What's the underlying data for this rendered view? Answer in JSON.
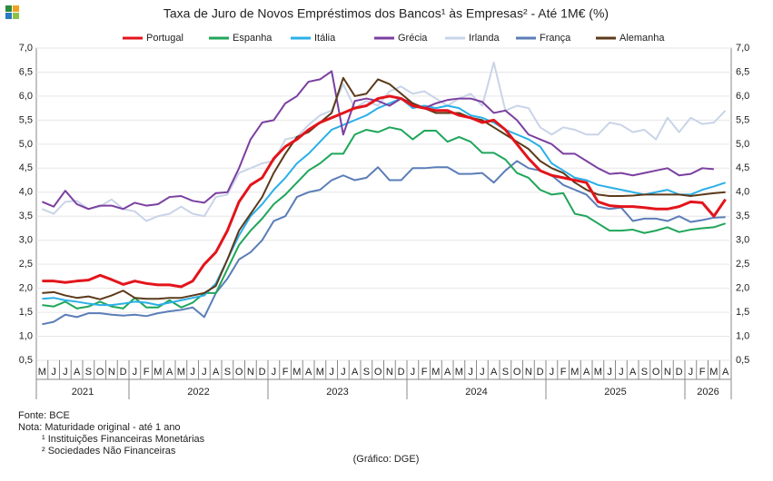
{
  "chart_data": {
    "type": "line",
    "title": "Taxa de Juro de Novos Empréstimos dos Bancos¹ às Empresas² -  Até 1M€ (%)",
    "groups": [
      {
        "year": "2021",
        "months": [
          "M",
          "J",
          "J",
          "A",
          "S",
          "O",
          "N",
          "D"
        ]
      },
      {
        "year": "2022",
        "months": [
          "J",
          "F",
          "M",
          "A",
          "M",
          "J",
          "J",
          "A",
          "S",
          "O",
          "N",
          "D"
        ]
      },
      {
        "year": "2023",
        "months": [
          "J",
          "F",
          "M",
          "A",
          "M",
          "J",
          "J",
          "A",
          "S",
          "O",
          "N",
          "D"
        ]
      },
      {
        "year": "2024",
        "months": [
          "J",
          "F",
          "M",
          "A",
          "M",
          "J",
          "J",
          "A",
          "S",
          "O",
          "N",
          "D"
        ]
      },
      {
        "year": "2025",
        "months": [
          "J",
          "F",
          "M",
          "A",
          "M",
          "J",
          "J",
          "A",
          "S",
          "O",
          "N",
          "D"
        ]
      },
      {
        "year": "2026",
        "months": [
          "J",
          "F",
          "M",
          "A"
        ]
      }
    ],
    "ylim": [
      0.5,
      7.0
    ],
    "yticks": [
      {
        "value": 0.5,
        "label": "0,5"
      },
      {
        "value": 1.0,
        "label": "1,0"
      },
      {
        "value": 1.5,
        "label": "1,5"
      },
      {
        "value": 2.0,
        "label": "2,0"
      },
      {
        "value": 2.5,
        "label": "2,5"
      },
      {
        "value": 3.0,
        "label": "3,0"
      },
      {
        "value": 3.5,
        "label": "3,5"
      },
      {
        "value": 4.0,
        "label": "4,0"
      },
      {
        "value": 4.5,
        "label": "4,5"
      },
      {
        "value": 5.0,
        "label": "5,0"
      },
      {
        "value": 5.5,
        "label": "5,5"
      },
      {
        "value": 6.0,
        "label": "6,0"
      },
      {
        "value": 6.5,
        "label": "6,5"
      },
      {
        "value": 7.0,
        "label": "7,0"
      }
    ],
    "series": [
      {
        "name": "Portugal",
        "color": "#e3141b",
        "values": [
          2.15,
          2.15,
          2.12,
          2.15,
          2.17,
          2.27,
          2.18,
          2.08,
          2.15,
          2.1,
          2.07,
          2.07,
          2.03,
          2.15,
          2.5,
          2.75,
          3.2,
          3.8,
          4.15,
          4.3,
          4.7,
          4.95,
          5.1,
          5.3,
          5.45,
          5.55,
          5.65,
          5.75,
          5.8,
          5.95,
          6.0,
          5.95,
          5.8,
          5.75,
          5.7,
          5.7,
          5.6,
          5.55,
          5.45,
          5.5,
          5.3,
          5.0,
          4.7,
          4.45,
          4.35,
          4.3,
          4.25,
          4.2,
          3.8,
          3.72,
          3.7,
          3.7,
          3.68,
          3.65,
          3.65,
          3.7,
          3.8,
          3.78,
          3.5,
          3.85
        ]
      },
      {
        "name": "Espanha",
        "color": "#1fa65a",
        "values": [
          1.65,
          1.62,
          1.72,
          1.58,
          1.62,
          1.72,
          1.62,
          1.58,
          1.8,
          1.6,
          1.6,
          1.75,
          1.6,
          1.7,
          1.9,
          1.9,
          2.4,
          2.9,
          3.2,
          3.45,
          3.75,
          3.95,
          4.2,
          4.45,
          4.6,
          4.8,
          4.8,
          5.2,
          5.3,
          5.25,
          5.35,
          5.3,
          5.1,
          5.28,
          5.28,
          5.05,
          5.15,
          5.05,
          4.82,
          4.82,
          4.68,
          4.4,
          4.3,
          4.05,
          3.95,
          3.98,
          3.55,
          3.5,
          3.35,
          3.2,
          3.2,
          3.22,
          3.15,
          3.2,
          3.27,
          3.17,
          3.22,
          3.25,
          3.27,
          3.35
        ]
      },
      {
        "name": "Itália",
        "color": "#2ab0e8",
        "values": [
          1.78,
          1.8,
          1.75,
          1.72,
          1.68,
          1.65,
          1.65,
          1.68,
          1.72,
          1.7,
          1.65,
          1.7,
          1.75,
          1.8,
          1.85,
          2.1,
          2.6,
          3.1,
          3.5,
          3.75,
          4.05,
          4.3,
          4.6,
          4.8,
          5.05,
          5.3,
          5.4,
          5.5,
          5.6,
          5.75,
          5.85,
          5.95,
          5.75,
          5.8,
          5.75,
          5.8,
          5.75,
          5.6,
          5.55,
          5.45,
          5.3,
          5.2,
          5.1,
          4.95,
          4.6,
          4.45,
          4.3,
          4.25,
          4.15,
          4.1,
          4.05,
          4.0,
          3.95,
          4.0,
          4.05,
          3.95,
          3.95,
          4.05,
          4.12,
          4.2
        ]
      },
      {
        "name": "Grécia",
        "color": "#7b3fa0",
        "values": [
          3.8,
          3.7,
          4.03,
          3.75,
          3.65,
          3.72,
          3.72,
          3.65,
          3.78,
          3.72,
          3.75,
          3.9,
          3.92,
          3.82,
          3.78,
          3.98,
          4.0,
          4.5,
          5.1,
          5.45,
          5.5,
          5.85,
          6.0,
          6.3,
          6.35,
          6.52,
          5.2,
          5.9,
          5.95,
          5.9,
          5.8,
          5.95,
          5.85,
          5.75,
          5.85,
          5.92,
          5.95,
          5.95,
          5.88,
          5.65,
          5.7,
          5.5,
          5.2,
          5.1,
          5.0,
          4.8,
          4.8,
          4.65,
          4.5,
          4.38,
          4.4,
          4.35,
          4.4,
          4.45,
          4.5,
          4.35,
          4.38,
          4.5,
          4.48,
          null
        ]
      },
      {
        "name": "Irlanda",
        "color": "#c9d4e8",
        "values": [
          3.65,
          3.55,
          3.8,
          3.82,
          3.65,
          3.7,
          3.85,
          3.65,
          3.6,
          3.4,
          3.5,
          3.55,
          3.7,
          3.55,
          3.5,
          3.9,
          3.95,
          4.4,
          4.5,
          4.6,
          4.65,
          5.1,
          5.15,
          5.4,
          5.6,
          5.7,
          6.25,
          5.75,
          5.9,
          5.8,
          6.1,
          6.2,
          6.05,
          6.1,
          5.95,
          5.8,
          5.95,
          6.05,
          5.8,
          6.7,
          5.7,
          5.8,
          5.75,
          5.35,
          5.2,
          5.35,
          5.3,
          5.2,
          5.2,
          5.45,
          5.4,
          5.25,
          5.3,
          5.1,
          5.55,
          5.25,
          5.55,
          5.42,
          5.45,
          5.7
        ]
      },
      {
        "name": "França",
        "color": "#5b7db8",
        "values": [
          1.25,
          1.3,
          1.45,
          1.4,
          1.48,
          1.48,
          1.45,
          1.43,
          1.45,
          1.42,
          1.48,
          1.52,
          1.55,
          1.6,
          1.4,
          1.9,
          2.2,
          2.6,
          2.75,
          3.0,
          3.4,
          3.5,
          3.9,
          4.0,
          4.05,
          4.25,
          4.35,
          4.25,
          4.3,
          4.52,
          4.25,
          4.25,
          4.5,
          4.5,
          4.52,
          4.52,
          4.38,
          4.38,
          4.4,
          4.2,
          4.45,
          4.65,
          4.5,
          4.45,
          4.35,
          4.15,
          4.05,
          3.95,
          3.7,
          3.65,
          3.68,
          3.4,
          3.45,
          3.45,
          3.4,
          3.5,
          3.38,
          3.42,
          3.47,
          3.48
        ]
      },
      {
        "name": "Alemanha",
        "color": "#5c3a1a",
        "values": [
          1.9,
          1.92,
          1.85,
          1.8,
          1.83,
          1.77,
          1.85,
          1.95,
          1.8,
          1.78,
          1.78,
          1.8,
          1.8,
          1.85,
          1.9,
          2.05,
          2.6,
          3.2,
          3.55,
          3.9,
          4.4,
          4.8,
          5.15,
          5.25,
          5.45,
          5.65,
          6.38,
          6.0,
          6.05,
          6.35,
          6.25,
          6.05,
          5.85,
          5.75,
          5.65,
          5.65,
          5.65,
          5.55,
          5.5,
          5.35,
          5.2,
          5.05,
          4.9,
          4.65,
          4.5,
          4.4,
          4.2,
          4.05,
          3.95,
          3.92,
          3.92,
          3.93,
          3.95,
          3.95,
          3.95,
          3.95,
          3.92,
          3.95,
          3.98,
          4.0
        ]
      }
    ],
    "notes": [
      "Fonte: BCE",
      "Nota: Maturidade original - até 1 ano",
      "¹ Instituições Financeiras Monetárias",
      "² Sociedades Não Financeiras"
    ],
    "credit": "(Gráfico: DGE)"
  }
}
